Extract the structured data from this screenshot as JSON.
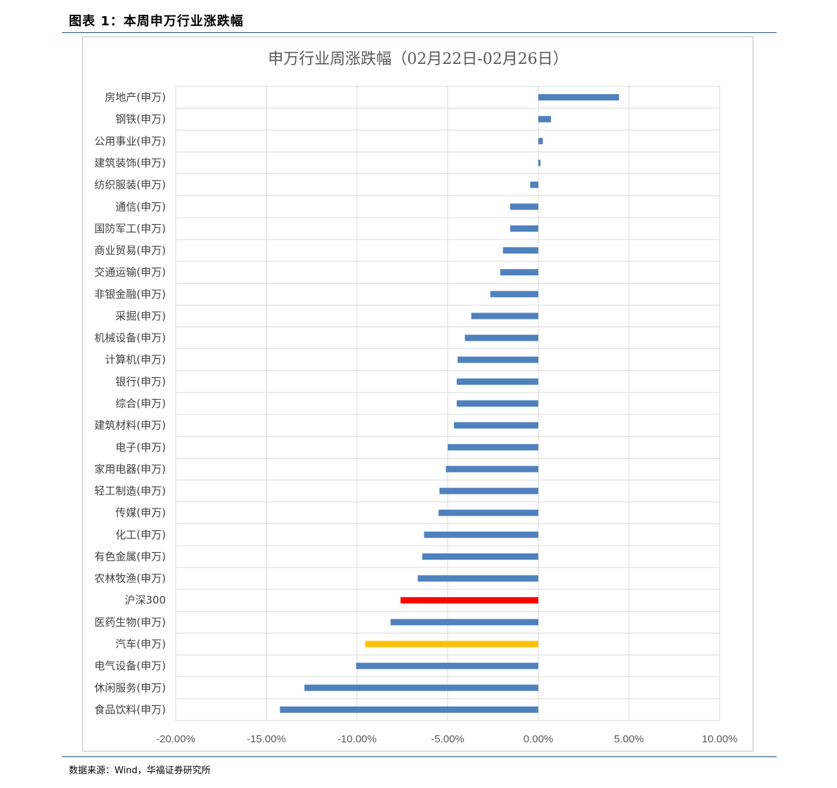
{
  "caption": "图表 1：本周申万行业涨跌幅",
  "source": "数据来源：Wind，华福证券研究所",
  "chart_data": {
    "type": "bar",
    "orientation": "horizontal",
    "title": "申万行业周涨跌幅（02月22日-02月26日）",
    "xlim": [
      -20,
      10
    ],
    "xticks": [
      -20,
      -15,
      -10,
      -5,
      0,
      5,
      10
    ],
    "xtick_labels": [
      "-20.00%",
      "-15.00%",
      "-10.00%",
      "-5.00%",
      "0.00%",
      "5.00%",
      "10.00%"
    ],
    "grid": true,
    "categories": [
      "房地产(申万)",
      "钢铁(申万)",
      "公用事业(申万)",
      "建筑装饰(申万)",
      "纺织服装(申万)",
      "通信(申万)",
      "国防军工(申万)",
      "商业贸易(申万)",
      "交通运输(申万)",
      "非银金融(申万)",
      "采掘(申万)",
      "机械设备(申万)",
      "计算机(申万)",
      "银行(申万)",
      "综合(申万)",
      "建筑材料(申万)",
      "电子(申万)",
      "家用电器(申万)",
      "轻工制造(申万)",
      "传媒(申万)",
      "化工(申万)",
      "有色金属(申万)",
      "农林牧渔(申万)",
      "沪深300",
      "医药生物(申万)",
      "汽车(申万)",
      "电气设备(申万)",
      "休闲服务(申万)",
      "食品饮料(申万)"
    ],
    "values": [
      4.45,
      0.7,
      0.25,
      0.12,
      -0.45,
      -1.55,
      -1.55,
      -1.95,
      -2.1,
      -2.65,
      -3.7,
      -4.05,
      -4.45,
      -4.5,
      -4.5,
      -4.65,
      -5.0,
      -5.1,
      -5.45,
      -5.5,
      -6.3,
      -6.4,
      -6.65,
      -7.6,
      -8.15,
      -9.55,
      -10.05,
      -12.9,
      -14.25
    ],
    "colors": {
      "default": "#4f81bd",
      "沪深300": "#ff0000",
      "汽车(申万)": "#ffc000",
      "grid": "#d9d9d9"
    }
  }
}
